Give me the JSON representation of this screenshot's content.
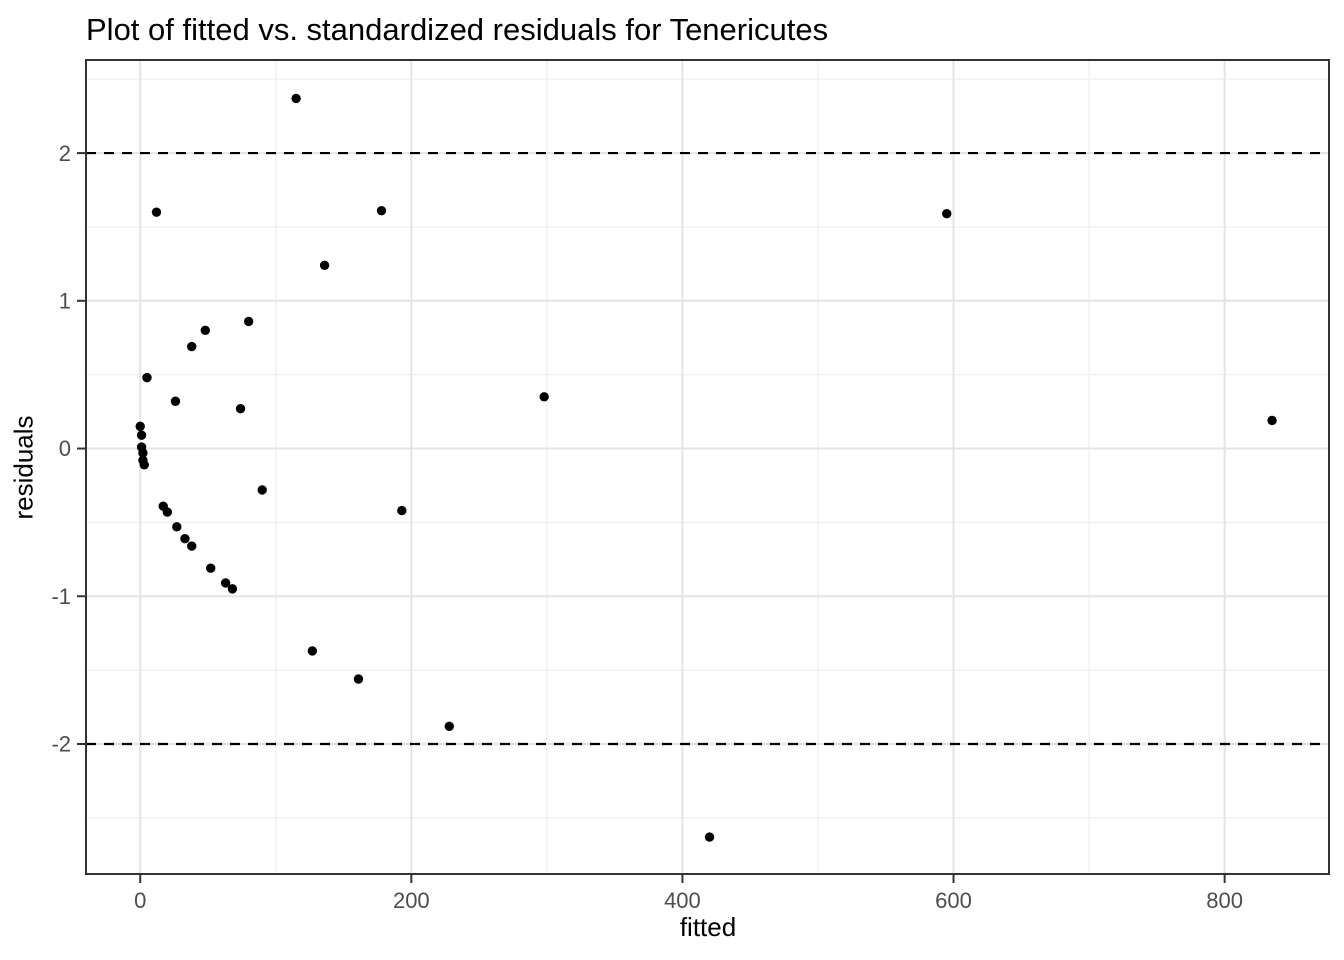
{
  "chart_data": {
    "type": "scatter",
    "title": "Plot of fitted vs. standardized residuals for Tenericutes",
    "xlabel": "fitted",
    "ylabel": "residuals",
    "xlim": [
      -40,
      877
    ],
    "ylim": [
      -2.88,
      2.63
    ],
    "x_ticks": [
      0,
      200,
      400,
      600,
      800
    ],
    "y_ticks": [
      -2,
      -1,
      0,
      1,
      2
    ],
    "x_minor_ticks": [
      100,
      300,
      500,
      700
    ],
    "y_minor_ticks": [
      -2.5,
      -1.5,
      -0.5,
      0.5,
      1.5,
      2.5
    ],
    "reference_lines": {
      "y_values": [
        2,
        -2
      ],
      "style": "dashed",
      "color": "#000000"
    },
    "grid": true,
    "legend_position": "none",
    "points": [
      [
        0,
        0.15
      ],
      [
        1,
        0.09
      ],
      [
        1,
        0.01
      ],
      [
        2,
        -0.03
      ],
      [
        2,
        -0.08
      ],
      [
        3,
        -0.11
      ],
      [
        5,
        0.48
      ],
      [
        12,
        1.6
      ],
      [
        17,
        -0.39
      ],
      [
        20,
        -0.43
      ],
      [
        26,
        0.32
      ],
      [
        27,
        -0.53
      ],
      [
        33,
        -0.61
      ],
      [
        38,
        0.69
      ],
      [
        38,
        -0.66
      ],
      [
        48,
        0.8
      ],
      [
        52,
        -0.81
      ],
      [
        63,
        -0.91
      ],
      [
        68,
        -0.95
      ],
      [
        74,
        0.27
      ],
      [
        80,
        0.86
      ],
      [
        90,
        -0.28
      ],
      [
        115,
        2.37
      ],
      [
        127,
        -1.37
      ],
      [
        136,
        1.24
      ],
      [
        161,
        -1.56
      ],
      [
        178,
        1.61
      ],
      [
        193,
        -0.42
      ],
      [
        228,
        -1.88
      ],
      [
        298,
        0.35
      ],
      [
        420,
        -2.63
      ],
      [
        595,
        1.59
      ],
      [
        835,
        0.19
      ]
    ],
    "point_color": "#000000",
    "colors": {
      "background": "#ffffff",
      "panel_background": "#ffffff",
      "panel_border": "#333333",
      "grid_major": "#e4e4e4",
      "grid_minor": "#f0f0f0",
      "tick_mark": "#333333",
      "tick_label": "#4d4d4d",
      "axis_title": "#000000",
      "title": "#000000"
    }
  }
}
